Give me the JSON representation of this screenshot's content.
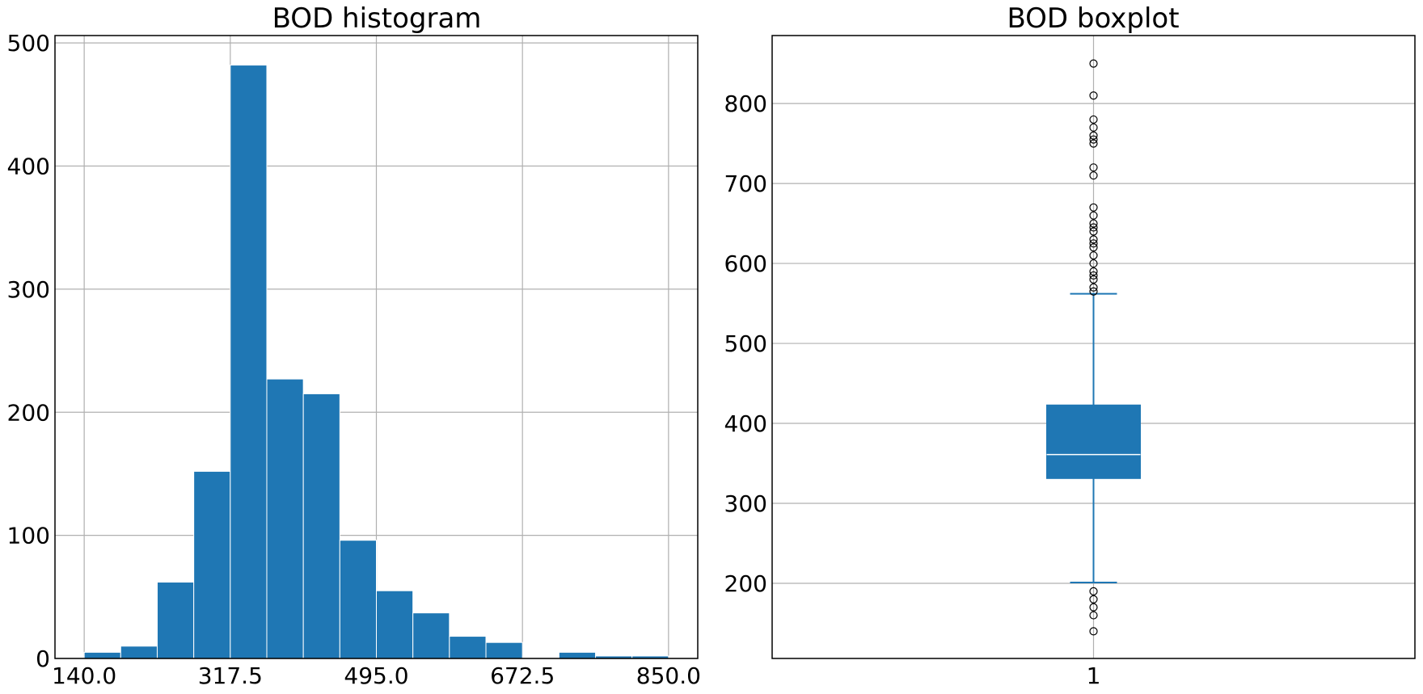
{
  "colors": {
    "bar": "#1f77b4",
    "bar_edge": "#ffffff",
    "box": "#1f77b4",
    "median": "#ffffff",
    "whisker": "#1f77b4",
    "flier_edge": "#000000",
    "grid": "#b0b0b0"
  },
  "chart_data": [
    {
      "type": "bar",
      "subtype": "histogram",
      "title": "BOD histogram",
      "xlabel": "",
      "ylabel": "",
      "bin_edges": [
        140.0,
        184.375,
        228.75,
        273.125,
        317.5,
        361.875,
        406.25,
        450.625,
        495.0,
        539.375,
        583.75,
        628.125,
        672.5,
        716.875,
        761.25,
        805.625,
        850.0
      ],
      "values": [
        5,
        10,
        62,
        152,
        482,
        227,
        215,
        96,
        55,
        37,
        18,
        13,
        0,
        5,
        2,
        2
      ],
      "xticks": [
        140.0,
        317.5,
        495.0,
        672.5,
        850.0
      ],
      "xtick_labels": [
        "140.0",
        "317.5",
        "495.0",
        "672.5",
        "850.0"
      ],
      "yticks": [
        0,
        100,
        200,
        300,
        400,
        500
      ],
      "ytick_labels": [
        "0",
        "100",
        "200",
        "300",
        "400",
        "500"
      ],
      "xlim": [
        104.5,
        885.5
      ],
      "ylim": [
        0,
        506
      ],
      "grid": true
    },
    {
      "type": "boxplot",
      "title": "BOD boxplot",
      "xlabel": "",
      "ylabel": "",
      "categories": [
        "1"
      ],
      "box": {
        "whisker_low": 201,
        "q1": 331,
        "median": 361,
        "q3": 423,
        "whisker_high": 562
      },
      "outliers": [
        850,
        810,
        780,
        770,
        760,
        755,
        750,
        720,
        710,
        670,
        660,
        650,
        645,
        640,
        630,
        625,
        620,
        610,
        600,
        590,
        585,
        580,
        570,
        565,
        190,
        180,
        170,
        160,
        140
      ],
      "yticks": [
        200,
        300,
        400,
        500,
        600,
        700,
        800
      ],
      "ytick_labels": [
        "200",
        "300",
        "400",
        "500",
        "600",
        "700",
        "800"
      ],
      "xlim": [
        0.5,
        1.5
      ],
      "ylim": [
        106,
        885
      ],
      "grid": true
    }
  ]
}
